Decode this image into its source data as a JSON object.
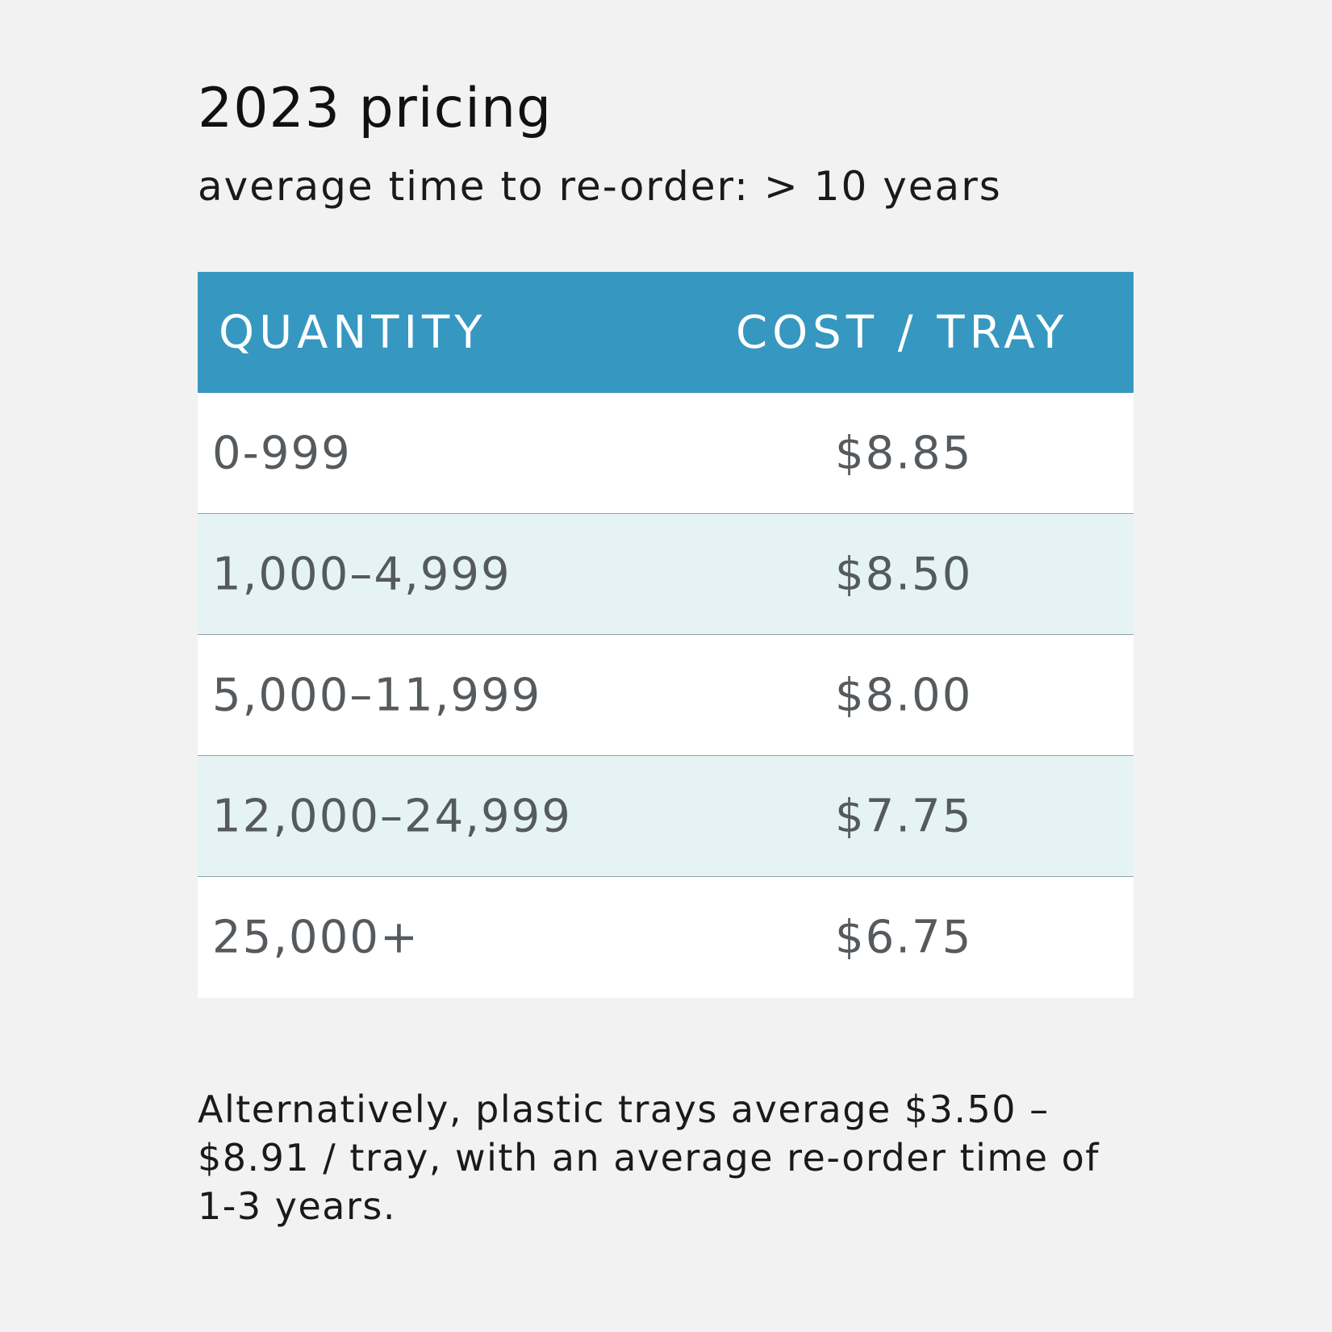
{
  "header": {
    "title": "2023 pricing",
    "subtitle": "average time to re-order: > 10 years"
  },
  "table": {
    "columns": [
      "QUANTITY",
      "COST / TRAY"
    ],
    "rows": [
      {
        "quantity": "0-999",
        "cost": "$8.85"
      },
      {
        "quantity": "1,000–4,999",
        "cost": "$8.50"
      },
      {
        "quantity": "5,000–11,999",
        "cost": "$8.00"
      },
      {
        "quantity": "12,000–24,999",
        "cost": "$7.75"
      },
      {
        "quantity": "25,000+",
        "cost": "$6.75"
      }
    ]
  },
  "note": {
    "line1": "Alternatively, plastic trays average $3.50 –",
    "line2": "$8.91 / tray, with an average re-order time of",
    "line3": "1-3 years."
  },
  "colors": {
    "background": "#f1f2f1",
    "header_bg": "#3697c1",
    "row_white": "#ffffff",
    "row_tint": "#e5f3f5"
  }
}
